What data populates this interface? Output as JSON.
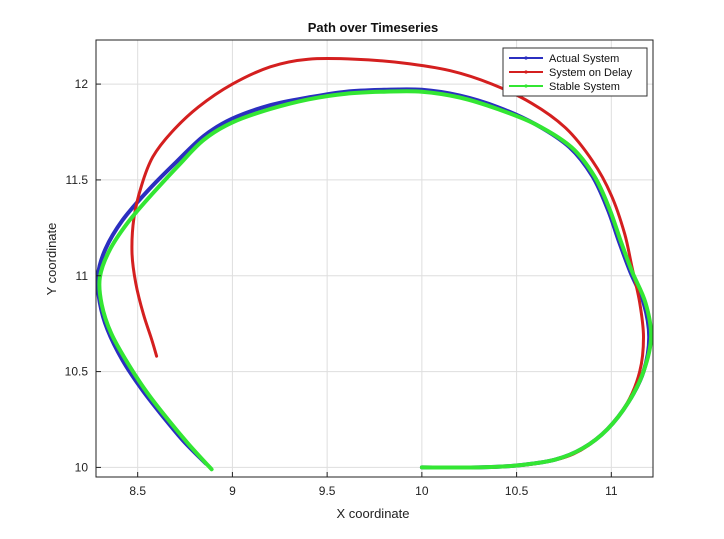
{
  "chart_data": {
    "type": "line",
    "title": "Path over Timeseries",
    "xlabel": "X coordinate",
    "ylabel": "Y coordinate",
    "xlim": [
      8.28,
      11.22
    ],
    "ylim": [
      9.95,
      12.23
    ],
    "xticks": [
      8.5,
      9,
      9.5,
      10,
      10.5,
      11
    ],
    "yticks": [
      10,
      10.5,
      11,
      11.5,
      12
    ],
    "xtick_labels": [
      "8.5",
      "9",
      "9.5",
      "10",
      "10.5",
      "11"
    ],
    "ytick_labels": [
      "10",
      "10.5",
      "11",
      "11.5",
      "12"
    ],
    "grid": true,
    "legend_position": "top-right",
    "series": [
      {
        "name": "Actual System",
        "color": "#2b2fc0",
        "points": [
          [
            10.0,
            10.0
          ],
          [
            10.3,
            10.0
          ],
          [
            10.5,
            10.01
          ],
          [
            10.7,
            10.04
          ],
          [
            10.85,
            10.1
          ],
          [
            10.98,
            10.2
          ],
          [
            11.09,
            10.34
          ],
          [
            11.17,
            10.5
          ],
          [
            11.2,
            10.68
          ],
          [
            11.17,
            10.86
          ],
          [
            11.1,
            11.02
          ],
          [
            11.04,
            11.18
          ],
          [
            10.98,
            11.35
          ],
          [
            10.9,
            11.52
          ],
          [
            10.78,
            11.67
          ],
          [
            10.6,
            11.79
          ],
          [
            10.4,
            11.88
          ],
          [
            10.2,
            11.94
          ],
          [
            10.0,
            11.97
          ],
          [
            9.8,
            11.97
          ],
          [
            9.6,
            11.96
          ],
          [
            9.4,
            11.93
          ],
          [
            9.2,
            11.89
          ],
          [
            9.0,
            11.82
          ],
          [
            8.85,
            11.73
          ],
          [
            8.7,
            11.59
          ],
          [
            8.55,
            11.44
          ],
          [
            8.42,
            11.29
          ],
          [
            8.33,
            11.14
          ],
          [
            8.29,
            11.0
          ],
          [
            8.3,
            10.86
          ],
          [
            8.34,
            10.72
          ],
          [
            8.42,
            10.56
          ],
          [
            8.52,
            10.41
          ],
          [
            8.63,
            10.27
          ],
          [
            8.74,
            10.14
          ],
          [
            8.86,
            10.02
          ]
        ]
      },
      {
        "name": "System on Delay",
        "color": "#d41f1f",
        "points": [
          [
            10.0,
            10.0
          ],
          [
            10.35,
            10.0
          ],
          [
            10.6,
            10.02
          ],
          [
            10.8,
            10.07
          ],
          [
            10.96,
            10.18
          ],
          [
            11.08,
            10.33
          ],
          [
            11.15,
            10.5
          ],
          [
            11.17,
            10.68
          ],
          [
            11.15,
            10.86
          ],
          [
            11.11,
            11.04
          ],
          [
            11.07,
            11.22
          ],
          [
            11.0,
            11.42
          ],
          [
            10.9,
            11.6
          ],
          [
            10.76,
            11.77
          ],
          [
            10.58,
            11.9
          ],
          [
            10.37,
            12.0
          ],
          [
            10.15,
            12.07
          ],
          [
            9.9,
            12.11
          ],
          [
            9.65,
            12.13
          ],
          [
            9.4,
            12.13
          ],
          [
            9.2,
            12.09
          ],
          [
            9.0,
            12.0
          ],
          [
            8.82,
            11.88
          ],
          [
            8.68,
            11.75
          ],
          [
            8.58,
            11.62
          ],
          [
            8.52,
            11.47
          ],
          [
            8.48,
            11.3
          ],
          [
            8.47,
            11.12
          ],
          [
            8.49,
            10.96
          ],
          [
            8.53,
            10.8
          ],
          [
            8.57,
            10.68
          ],
          [
            8.6,
            10.58
          ]
        ]
      },
      {
        "name": "Stable System",
        "color": "#33e633",
        "points": [
          [
            10.0,
            10.0
          ],
          [
            10.3,
            10.0
          ],
          [
            10.5,
            10.01
          ],
          [
            10.7,
            10.04
          ],
          [
            10.85,
            10.1
          ],
          [
            10.98,
            10.2
          ],
          [
            11.09,
            10.34
          ],
          [
            11.17,
            10.5
          ],
          [
            11.21,
            10.68
          ],
          [
            11.18,
            10.86
          ],
          [
            11.11,
            11.02
          ],
          [
            11.05,
            11.18
          ],
          [
            10.99,
            11.35
          ],
          [
            10.91,
            11.52
          ],
          [
            10.79,
            11.67
          ],
          [
            10.6,
            11.79
          ],
          [
            10.4,
            11.87
          ],
          [
            10.2,
            11.93
          ],
          [
            10.0,
            11.96
          ],
          [
            9.8,
            11.96
          ],
          [
            9.6,
            11.95
          ],
          [
            9.4,
            11.92
          ],
          [
            9.2,
            11.87
          ],
          [
            9.0,
            11.8
          ],
          [
            8.85,
            11.71
          ],
          [
            8.72,
            11.58
          ],
          [
            8.58,
            11.43
          ],
          [
            8.45,
            11.28
          ],
          [
            8.35,
            11.13
          ],
          [
            8.3,
            10.99
          ],
          [
            8.31,
            10.85
          ],
          [
            8.36,
            10.7
          ],
          [
            8.45,
            10.54
          ],
          [
            8.55,
            10.39
          ],
          [
            8.66,
            10.25
          ],
          [
            8.77,
            10.12
          ],
          [
            8.89,
            9.99
          ]
        ]
      }
    ]
  }
}
